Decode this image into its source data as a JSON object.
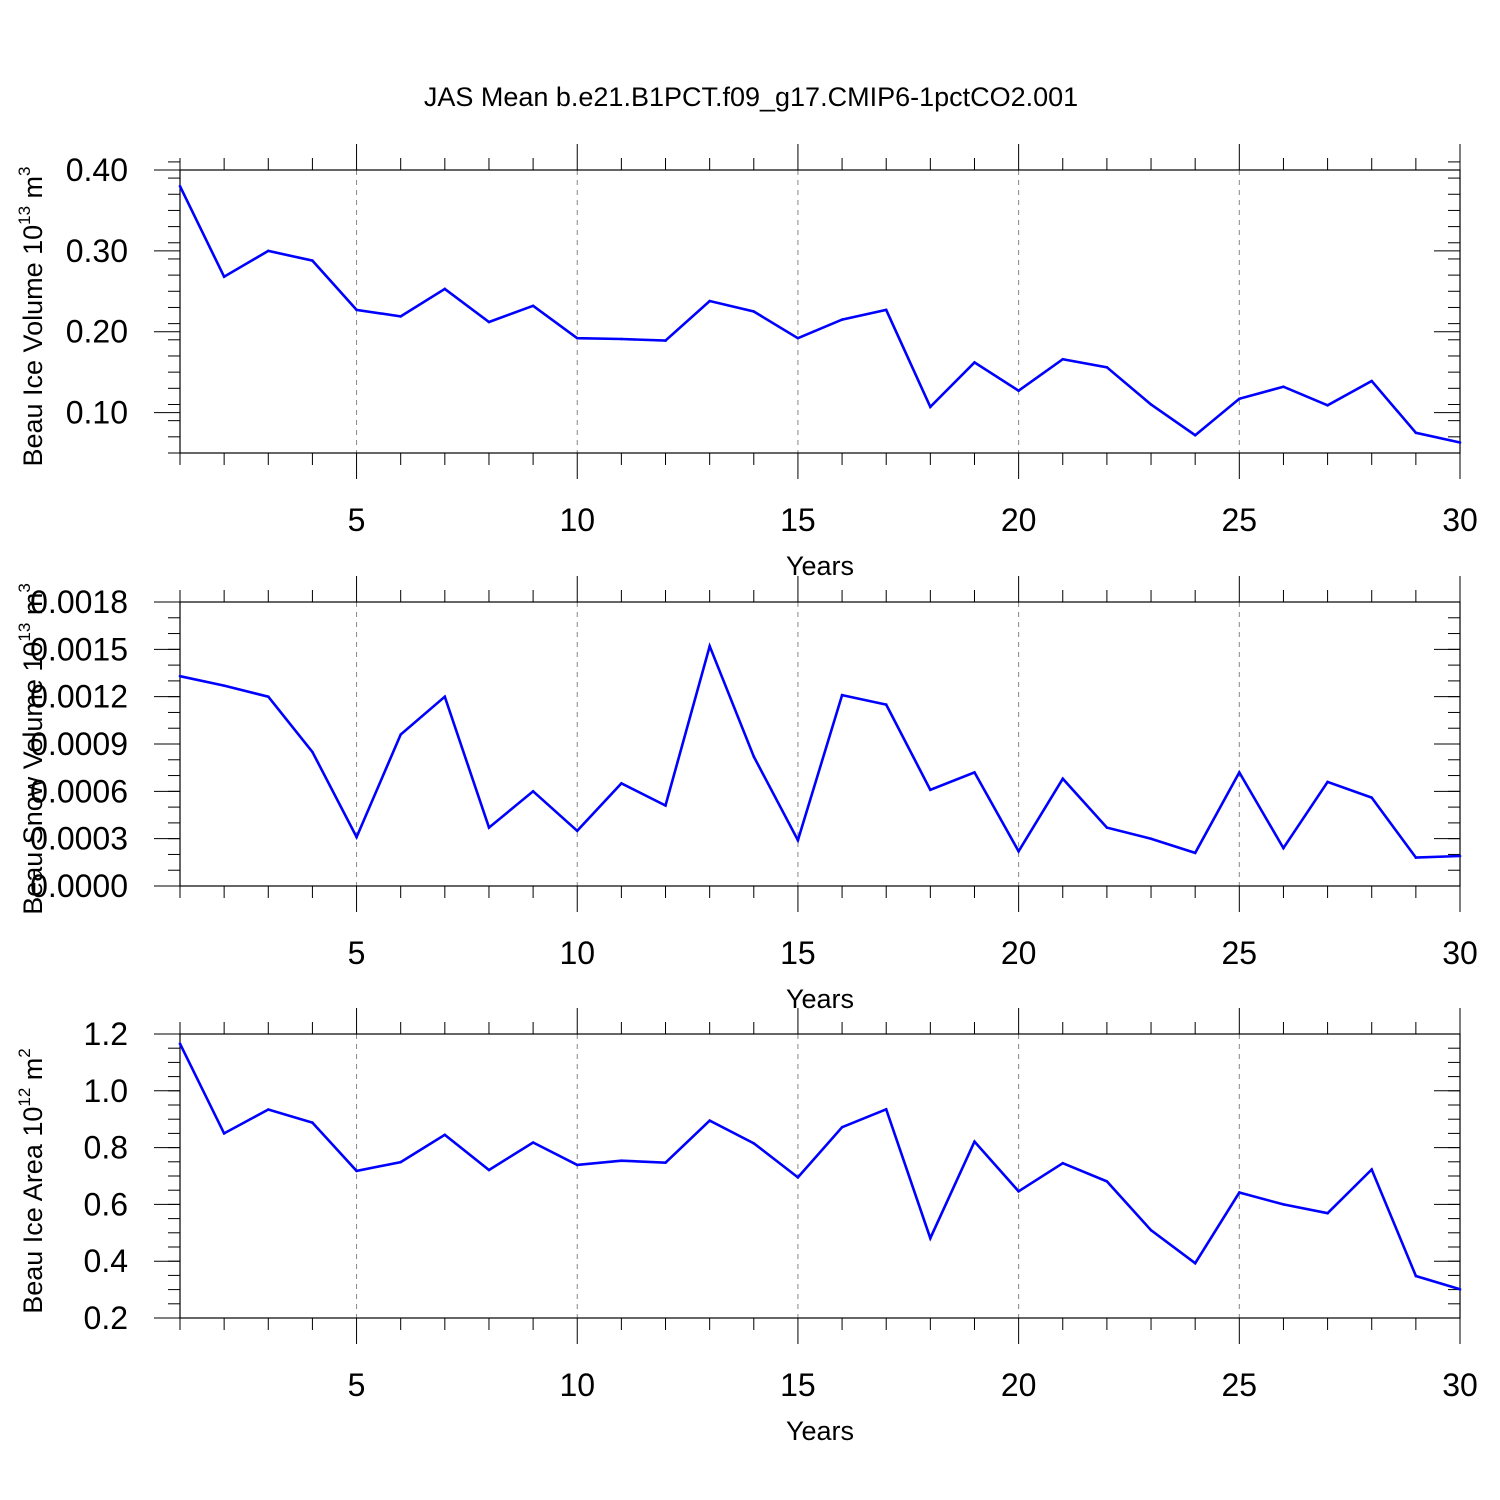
{
  "title": "JAS Mean b.e21.B1PCT.f09_g17.CMIP6-1pctCO2.001",
  "chart_data": [
    {
      "type": "line",
      "xlabel": "Years",
      "ylabel": "Beau Ice Volume 10",
      "ylabel_sup": "13",
      "ylabel_unit": "m",
      "ylabel_unit_sup": "3",
      "xlim": [
        1,
        30
      ],
      "ylim": [
        0.05,
        0.4
      ],
      "x_ticks": [
        5,
        10,
        15,
        20,
        25,
        30
      ],
      "x_tick_labels": [
        "5",
        "10",
        "15",
        "20",
        "25",
        "30"
      ],
      "y_ticks": [
        0.1,
        0.2,
        0.3,
        0.4
      ],
      "y_tick_labels": [
        "0.10",
        "0.20",
        "0.30",
        "0.40"
      ],
      "grid": "vertical dashed at major x ticks",
      "line_color": "#0000ff",
      "x": [
        1,
        2,
        3,
        4,
        5,
        6,
        7,
        8,
        9,
        10,
        11,
        12,
        13,
        14,
        15,
        16,
        17,
        18,
        19,
        20,
        21,
        22,
        23,
        24,
        25,
        26,
        27,
        28,
        29,
        30
      ],
      "values": [
        0.38,
        0.268,
        0.3,
        0.288,
        0.227,
        0.219,
        0.253,
        0.212,
        0.232,
        0.192,
        0.191,
        0.189,
        0.238,
        0.225,
        0.192,
        0.215,
        0.227,
        0.107,
        0.162,
        0.127,
        0.166,
        0.156,
        0.11,
        0.072,
        0.117,
        0.132,
        0.109,
        0.139,
        0.075,
        0.063
      ]
    },
    {
      "type": "line",
      "xlabel": "Years",
      "ylabel": "Beau Snow Volume 10",
      "ylabel_sup": "13",
      "ylabel_unit": "m",
      "ylabel_unit_sup": "3",
      "xlim": [
        1,
        30
      ],
      "ylim": [
        0.0,
        0.0018
      ],
      "x_ticks": [
        5,
        10,
        15,
        20,
        25,
        30
      ],
      "x_tick_labels": [
        "5",
        "10",
        "15",
        "20",
        "25",
        "30"
      ],
      "y_ticks": [
        0.0,
        0.0003,
        0.0006,
        0.0009,
        0.0012,
        0.0015,
        0.0018
      ],
      "y_tick_labels": [
        "0.0000",
        "0.0003",
        "0.0006",
        "0.0009",
        "0.0012",
        "0.0015",
        "0.0018"
      ],
      "grid": "vertical dashed at major x ticks",
      "line_color": "#0000ff",
      "x": [
        1,
        2,
        3,
        4,
        5,
        6,
        7,
        8,
        9,
        10,
        11,
        12,
        13,
        14,
        15,
        16,
        17,
        18,
        19,
        20,
        21,
        22,
        23,
        24,
        25,
        26,
        27,
        28,
        29,
        30
      ],
      "values": [
        0.00133,
        0.00127,
        0.0012,
        0.00085,
        0.00031,
        0.00096,
        0.0012,
        0.00037,
        0.0006,
        0.00035,
        0.00065,
        0.00051,
        0.00152,
        0.00082,
        0.00029,
        0.00121,
        0.00115,
        0.00061,
        0.00072,
        0.00022,
        0.00068,
        0.00037,
        0.0003,
        0.00021,
        0.00072,
        0.00024,
        0.00066,
        0.00056,
        0.00018,
        0.00019
      ]
    },
    {
      "type": "line",
      "xlabel": "Years",
      "ylabel": "Beau Ice Area 10",
      "ylabel_sup": "12",
      "ylabel_unit": "m",
      "ylabel_unit_sup": "2",
      "xlim": [
        1,
        30
      ],
      "ylim": [
        0.2,
        1.2
      ],
      "x_ticks": [
        5,
        10,
        15,
        20,
        25,
        30
      ],
      "x_tick_labels": [
        "5",
        "10",
        "15",
        "20",
        "25",
        "30"
      ],
      "y_ticks": [
        0.2,
        0.4,
        0.6,
        0.8,
        1.0,
        1.2
      ],
      "y_tick_labels": [
        "0.2",
        "0.4",
        "0.6",
        "0.8",
        "1.0",
        "1.2"
      ],
      "grid": "vertical dashed at major x ticks",
      "line_color": "#0000ff",
      "x": [
        1,
        2,
        3,
        4,
        5,
        6,
        7,
        8,
        9,
        10,
        11,
        12,
        13,
        14,
        15,
        16,
        17,
        18,
        19,
        20,
        21,
        22,
        23,
        24,
        25,
        26,
        27,
        28,
        29,
        30
      ],
      "values": [
        1.166,
        0.85,
        0.934,
        0.888,
        0.718,
        0.749,
        0.845,
        0.721,
        0.818,
        0.739,
        0.754,
        0.747,
        0.895,
        0.815,
        0.695,
        0.872,
        0.935,
        0.481,
        0.821,
        0.646,
        0.745,
        0.681,
        0.509,
        0.393,
        0.642,
        0.6,
        0.569,
        0.723,
        0.348,
        0.301
      ]
    }
  ]
}
